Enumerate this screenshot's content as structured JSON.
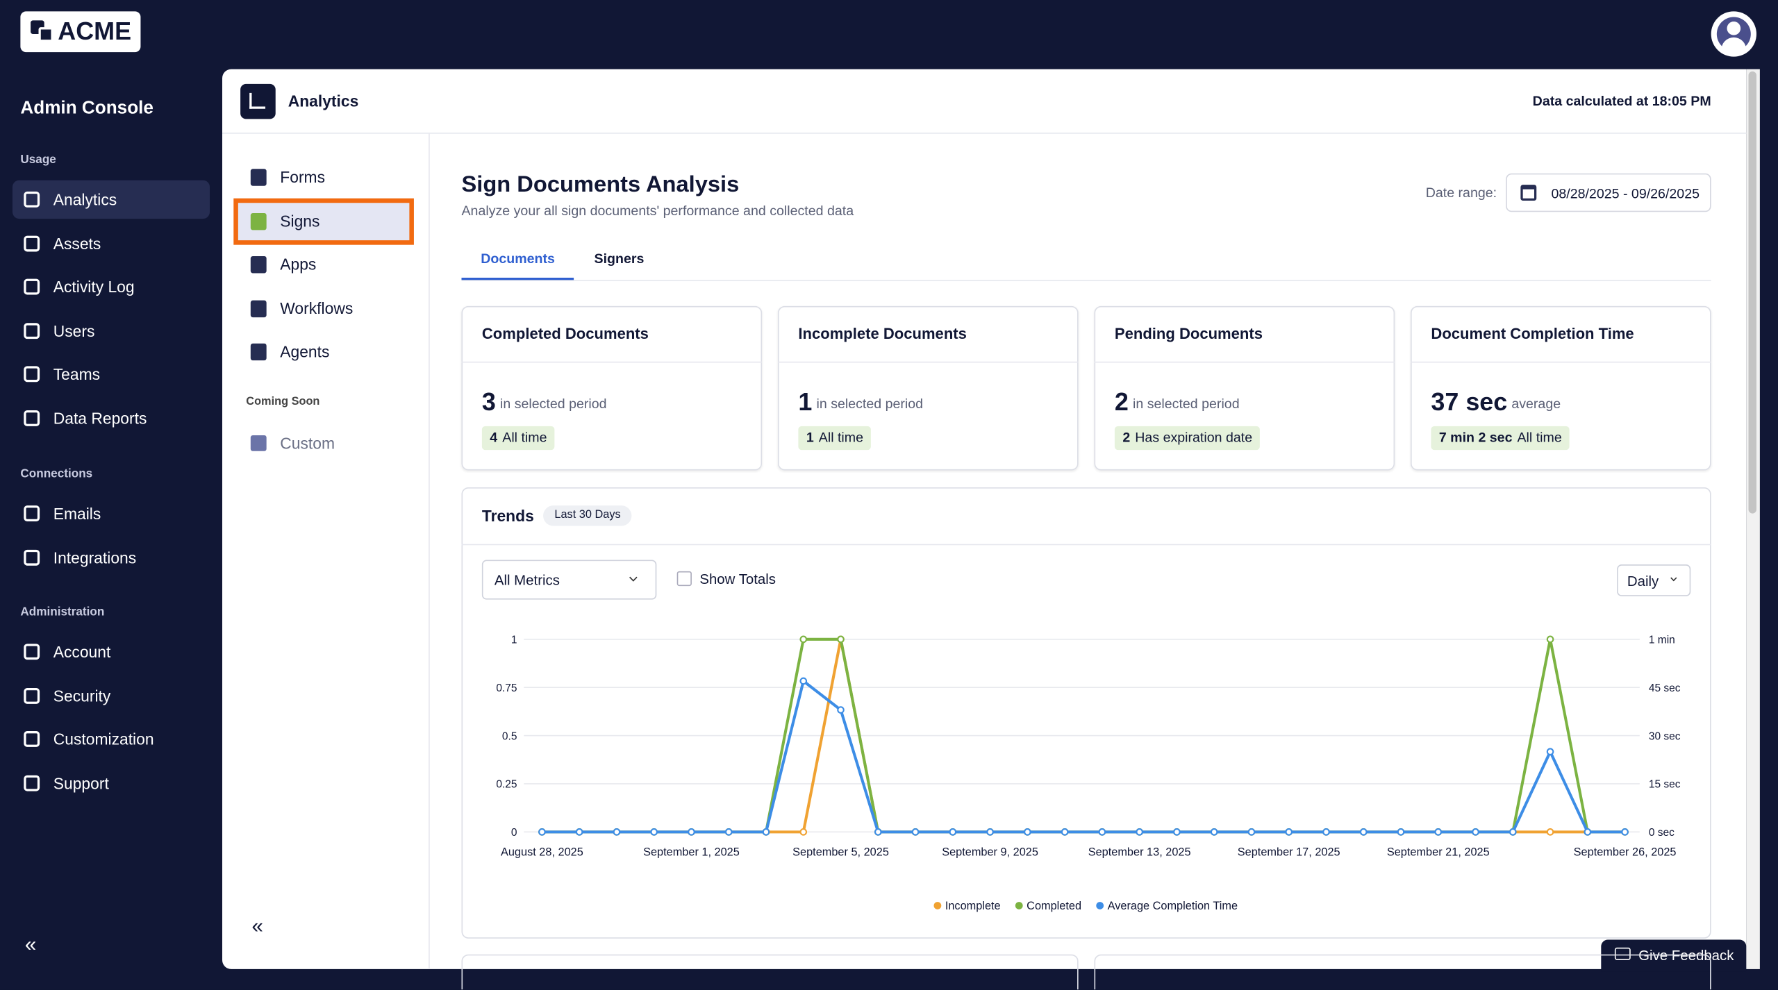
{
  "brand": "ACME",
  "sidebar": {
    "title": "Admin Console",
    "sections": [
      {
        "label": "Usage",
        "items": [
          "Analytics",
          "Assets",
          "Activity Log",
          "Users",
          "Teams",
          "Data Reports"
        ]
      },
      {
        "label": "Connections",
        "items": [
          "Emails",
          "Integrations"
        ]
      },
      {
        "label": "Administration",
        "items": [
          "Account",
          "Security",
          "Customization",
          "Support"
        ]
      }
    ],
    "collapse": "«"
  },
  "header": {
    "title": "Analytics",
    "status": "Data calculated at 18:05 PM"
  },
  "subnav": {
    "items": [
      "Forms",
      "Signs",
      "Apps",
      "Workflows",
      "Agents"
    ],
    "coming_soon_label": "Coming Soon",
    "coming_soon_items": [
      "Custom"
    ],
    "collapse": "«"
  },
  "page": {
    "title": "Sign Documents Analysis",
    "subtitle": "Analyze your all sign documents' performance and collected data",
    "date_range_label": "Date range:",
    "date_range": "08/28/2025 - 09/26/2025",
    "tabs": [
      "Documents",
      "Signers"
    ]
  },
  "cards": [
    {
      "title": "Completed Documents",
      "value": 3,
      "unit": "in selected period",
      "badge_value": 4,
      "badge_label": "All time"
    },
    {
      "title": "Incomplete Documents",
      "value": 1,
      "unit": "in selected period",
      "badge_value": 1,
      "badge_label": "All time"
    },
    {
      "title": "Pending Documents",
      "value": 2,
      "unit": "in selected period",
      "badge_value": 2,
      "badge_label": "Has expiration date"
    },
    {
      "title": "Document Completion Time",
      "value": "37 sec",
      "unit": "average",
      "badge_value": "7 min 2 sec",
      "badge_label": "All time"
    }
  ],
  "trends": {
    "title": "Trends",
    "badge": "Last 30 Days",
    "metric_select": "All Metrics",
    "show_totals": "Show Totals",
    "interval": "Daily"
  },
  "chart_data": {
    "type": "line",
    "categories": [
      "August 28, 2025",
      null,
      null,
      null,
      "September 1, 2025",
      null,
      null,
      null,
      "September 5, 2025",
      null,
      null,
      null,
      "September 9, 2025",
      null,
      null,
      null,
      "September 13, 2025",
      null,
      null,
      null,
      "September 17, 2025",
      null,
      null,
      null,
      "September 21, 2025",
      null,
      null,
      null,
      null,
      "September 26, 2025"
    ],
    "series": [
      {
        "name": "Incomplete",
        "color": "#f0a232",
        "values": [
          0,
          0,
          0,
          0,
          0,
          0,
          0,
          0,
          1,
          0,
          0,
          0,
          0,
          0,
          0,
          0,
          0,
          0,
          0,
          0,
          0,
          0,
          0,
          0,
          0,
          0,
          0,
          0,
          0,
          0
        ]
      },
      {
        "name": "Completed",
        "color": "#7cb342",
        "values": [
          0,
          0,
          0,
          0,
          0,
          0,
          0,
          1,
          1,
          0,
          0,
          0,
          0,
          0,
          0,
          0,
          0,
          0,
          0,
          0,
          0,
          0,
          0,
          0,
          0,
          0,
          0,
          1,
          0,
          0
        ]
      },
      {
        "name": "Average Completion Time",
        "color": "#3d8de6",
        "axis": "y2",
        "values": [
          0,
          0,
          0,
          0,
          0,
          0,
          0,
          47,
          38,
          0,
          0,
          0,
          0,
          0,
          0,
          0,
          0,
          0,
          0,
          0,
          0,
          0,
          0,
          0,
          0,
          0,
          0,
          25,
          0,
          0
        ]
      }
    ],
    "ylim": [
      0,
      1
    ],
    "yticks": [
      0,
      0.25,
      0.5,
      0.75,
      1
    ],
    "y2lim": [
      0,
      60
    ],
    "y2ticks": [
      {
        "value": 0,
        "label": "0 sec"
      },
      {
        "value": 15,
        "label": "15 sec"
      },
      {
        "value": 30,
        "label": "30 sec"
      },
      {
        "value": 45,
        "label": "45 sec"
      },
      {
        "value": 60,
        "label": "1 min"
      }
    ],
    "grid": true,
    "legend": "bottom"
  },
  "feedback": "Give Feedback"
}
